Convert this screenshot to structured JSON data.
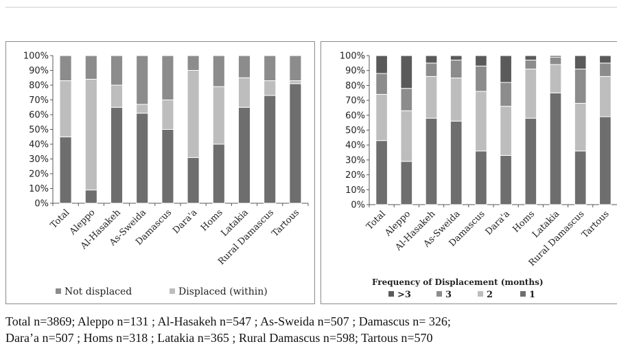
{
  "chart_data": [
    {
      "type": "bar",
      "stacked": true,
      "percent_stacked": true,
      "categories": [
        "Total",
        "Aleppo",
        "Al-Hasakeh",
        "As-Sweida",
        "Damascus",
        "Dara'a",
        "Homs",
        "Latakia",
        "Rural Damascus",
        "Tartous"
      ],
      "series": [
        {
          "values": [
            45,
            9,
            65,
            61,
            50,
            31,
            40,
            65,
            73,
            81
          ],
          "color": "#6e6e6e"
        },
        {
          "name": "Displaced (within)",
          "values": [
            38,
            75,
            15,
            6,
            20,
            59,
            39,
            20,
            10,
            2
          ],
          "color": "#bdbdbd"
        },
        {
          "name": "Not displaced",
          "values": [
            17,
            16,
            20,
            33,
            30,
            10,
            21,
            15,
            17,
            17
          ],
          "color": "#8c8c8c"
        }
      ],
      "legend": [
        {
          "name": "Not displaced",
          "color": "#8c8c8c"
        },
        {
          "name": "Displaced (within)",
          "color": "#bdbdbd"
        }
      ],
      "ylim": [
        0,
        100
      ],
      "yticks": [
        "0%",
        "10%",
        "20%",
        "30%",
        "40%",
        "50%",
        "60%",
        "70%",
        "80%",
        "90%",
        "100%"
      ],
      "grid": false,
      "legend_position": "bottom"
    },
    {
      "type": "bar",
      "stacked": true,
      "percent_stacked": true,
      "categories": [
        "Total",
        "Aleppo",
        "Al-Hasakeh",
        "As-Sweida",
        "Damascus",
        "Dara'a",
        "Homs",
        "Latakia",
        "Rural Damascus",
        "Tartous"
      ],
      "series": [
        {
          "values": [
            43,
            29,
            58,
            56,
            36,
            33,
            58,
            75,
            36,
            59
          ],
          "color": "#6e6e6e"
        },
        {
          "name": "2",
          "values": [
            31,
            34,
            28,
            29,
            40,
            33,
            33,
            19,
            32,
            27
          ],
          "color": "#bdbdbd"
        },
        {
          "name": "3",
          "values": [
            14,
            15,
            9,
            12,
            17,
            16,
            6,
            5,
            23,
            9
          ],
          "color": "#8c8c8c"
        },
        {
          "name": ">3",
          "values": [
            12,
            22,
            5,
            3,
            7,
            18,
            3,
            1,
            9,
            5
          ],
          "color": "#5a5a5a"
        }
      ],
      "legend": [
        {
          "name": ">3",
          "color": "#5a5a5a"
        },
        {
          "name": "3",
          "color": "#8c8c8c"
        },
        {
          "name": "2",
          "color": "#bdbdbd"
        },
        {
          "name": "1",
          "color": "#6e6e6e"
        }
      ],
      "legend_title": "Frequency of Displacement (months)",
      "ylim": [
        0,
        100
      ],
      "yticks": [
        "0%",
        "10%",
        "20%",
        "30%",
        "40%",
        "50%",
        "60%",
        "70%",
        "80%",
        "90%",
        "100%"
      ],
      "grid": false,
      "legend_position": "bottom"
    }
  ],
  "caption": {
    "line1": "Total n=3869; Aleppo n=131 ; Al-Hasakeh n=547 ; As-Sweida n=507 ; Damascus n= 326;",
    "line2": "Dara’a n=507 ; Homs n=318 ; Latakia n=365 ; Rural Damascus n=598; Tartous n=570"
  }
}
